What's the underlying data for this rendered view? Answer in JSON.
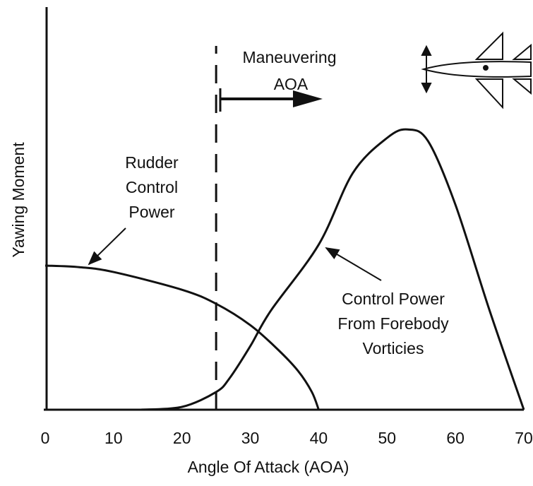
{
  "chart_data": {
    "type": "line",
    "xlabel": "Angle Of Attack (AOA)",
    "ylabel": "Yawing Moment",
    "xlim": [
      0,
      70
    ],
    "xticks": [
      0,
      10,
      20,
      30,
      40,
      50,
      60,
      70
    ],
    "ylim": [
      0,
      100
    ],
    "color": "#111111",
    "series": [
      {
        "x": [
          0,
          5,
          10,
          20,
          25,
          30,
          34,
          37,
          39,
          40
        ],
        "values": [
          35.8,
          35.4,
          34.2,
          29.8,
          26.3,
          21,
          15,
          9.6,
          4.4,
          0
        ],
        "label_lines": [
          "Rudder",
          "Control",
          "Power"
        ]
      },
      {
        "x": [
          14,
          20,
          25,
          27,
          30,
          33,
          40,
          45,
          50,
          53,
          56,
          60,
          65,
          70
        ],
        "values": [
          0,
          0.7,
          4.4,
          7.9,
          15.8,
          24.6,
          41,
          58.8,
          67.5,
          69.6,
          66.7,
          50.9,
          24.6,
          0
        ],
        "label_lines": [
          "Control Power",
          "From Forebody",
          "Vorticies"
        ]
      }
    ],
    "marker_x": 25,
    "marker_label_lines": [
      "Maneuvering",
      "AOA"
    ]
  }
}
